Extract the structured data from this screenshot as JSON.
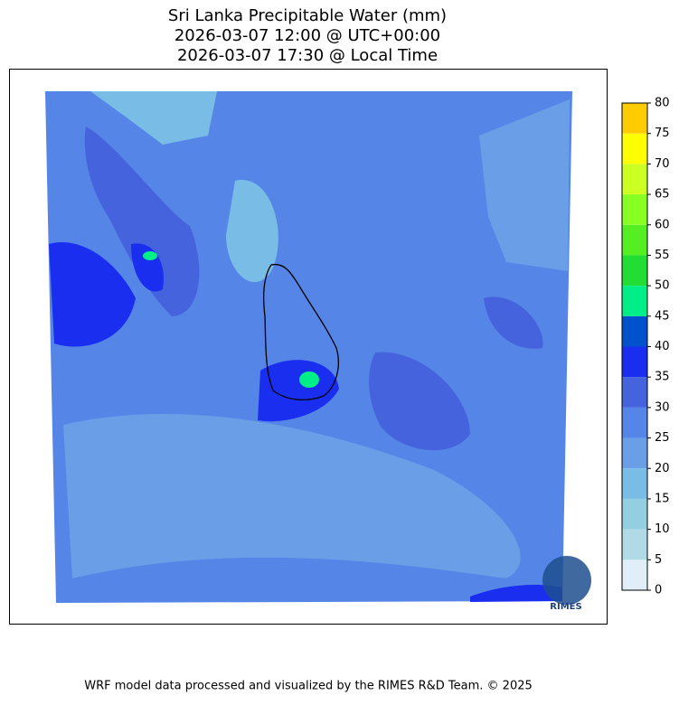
{
  "title": [
    "Sri Lanka Precipitable Water (mm)",
    "2026-03-07 12:00 @ UTC+00:00",
    "2026-03-07 17:30 @ Local Time"
  ],
  "colorbar": {
    "ticks": [
      0,
      5,
      10,
      15,
      20,
      25,
      30,
      35,
      40,
      45,
      50,
      55,
      60,
      65,
      70,
      75,
      80
    ],
    "colors": [
      "#e0eef8",
      "#b0dbe6",
      "#93cfe0",
      "#79bde6",
      "#6a9fe8",
      "#5585e6",
      "#4563dc",
      "#1a2ef0",
      "#0052cc",
      "#00ee88",
      "#22dd33",
      "#55ee22",
      "#88ff22",
      "#ccff22",
      "#ffff00",
      "#ffcc00"
    ]
  },
  "logo": "RIMES",
  "footer": "WRF model data processed and visualized by the RIMES R&D Team. © 2025"
}
